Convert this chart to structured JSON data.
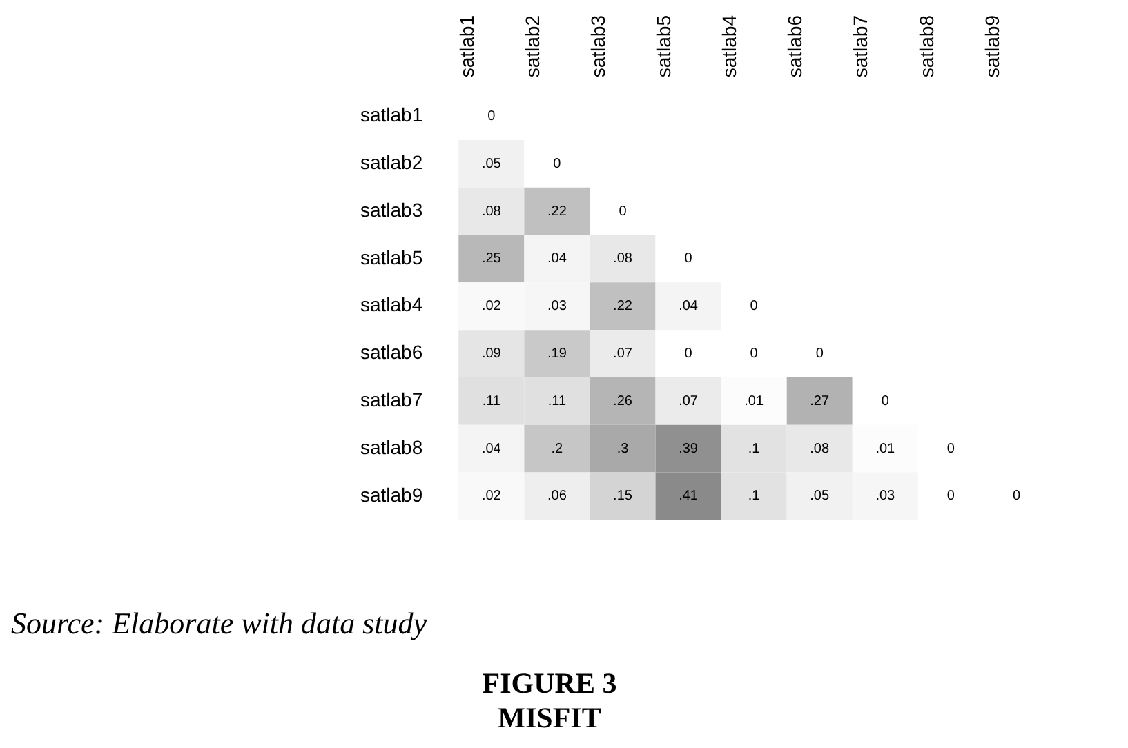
{
  "chart_data": {
    "type": "heatmap",
    "title": "FIGURE 3",
    "subtitle": "MISFIT",
    "annotations": [
      "Source: Elaborate with data study"
    ],
    "categories": [
      "satlab1",
      "satlab2",
      "satlab3",
      "satlab5",
      "satlab4",
      "satlab6",
      "satlab7",
      "satlab8",
      "satlab9"
    ],
    "y_categories": [
      "satlab1",
      "satlab2",
      "satlab3",
      "satlab5",
      "satlab4",
      "satlab6",
      "satlab7",
      "satlab8",
      "satlab9"
    ],
    "cells": [
      [
        0,
        null,
        null,
        null,
        null,
        null,
        null,
        null,
        null
      ],
      [
        0.05,
        0,
        null,
        null,
        null,
        null,
        null,
        null,
        null
      ],
      [
        0.08,
        0.22,
        0,
        null,
        null,
        null,
        null,
        null,
        null
      ],
      [
        0.25,
        0.04,
        0.08,
        0,
        null,
        null,
        null,
        null,
        null
      ],
      [
        0.02,
        0.03,
        0.22,
        0.04,
        0,
        null,
        null,
        null,
        null
      ],
      [
        0.09,
        0.19,
        0.07,
        0,
        0,
        0,
        null,
        null,
        null
      ],
      [
        0.11,
        0.11,
        0.26,
        0.07,
        0.01,
        0.27,
        0,
        null,
        null
      ],
      [
        0.04,
        0.2,
        0.3,
        0.39,
        0.1,
        0.08,
        0.01,
        0,
        null
      ],
      [
        0.02,
        0.06,
        0.15,
        0.41,
        0.1,
        0.05,
        0.03,
        0,
        0
      ]
    ],
    "cell_labels": [
      [
        "0",
        null,
        null,
        null,
        null,
        null,
        null,
        null,
        null
      ],
      [
        ".05",
        "0",
        null,
        null,
        null,
        null,
        null,
        null,
        null
      ],
      [
        ".08",
        ".22",
        "0",
        null,
        null,
        null,
        null,
        null,
        null
      ],
      [
        ".25",
        ".04",
        ".08",
        "0",
        null,
        null,
        null,
        null,
        null
      ],
      [
        ".02",
        ".03",
        ".22",
        ".04",
        "0",
        null,
        null,
        null,
        null
      ],
      [
        ".09",
        ".19",
        ".07",
        "0",
        "0",
        "0",
        null,
        null,
        null
      ],
      [
        ".11",
        ".11",
        ".26",
        ".07",
        ".01",
        ".27",
        "0",
        null,
        null
      ],
      [
        ".04",
        ".2",
        ".3",
        ".39",
        ".1",
        ".08",
        ".01",
        "0",
        null
      ],
      [
        ".02",
        ".06",
        ".15",
        ".41",
        ".1",
        ".05",
        ".03",
        "0",
        "0"
      ]
    ]
  }
}
